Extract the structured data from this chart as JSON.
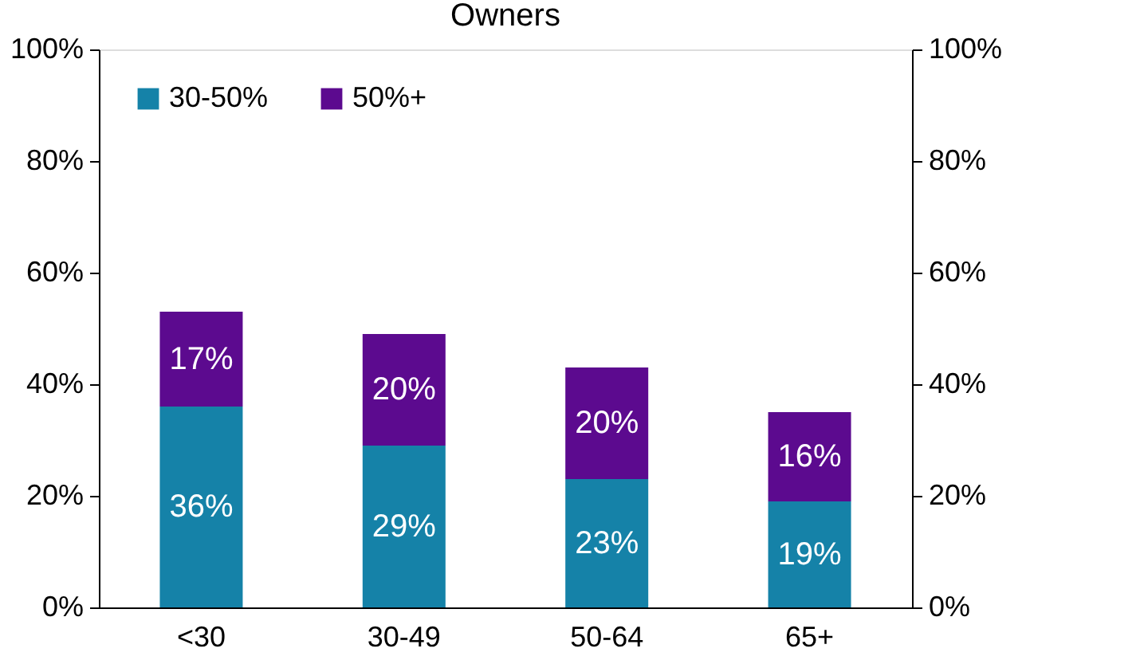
{
  "chart_data": {
    "type": "bar",
    "title": "Owners",
    "stacked": true,
    "categories": [
      "<30",
      "30-49",
      "50-64",
      "65+"
    ],
    "series": [
      {
        "name": "30-50%",
        "color": "#1582a8",
        "values": [
          36,
          29,
          23,
          19
        ],
        "value_labels": [
          "36%",
          "29%",
          "23%",
          "19%"
        ]
      },
      {
        "name": "50%+",
        "color": "#5c0a8f",
        "values": [
          17,
          20,
          20,
          16
        ],
        "value_labels": [
          "17%",
          "20%",
          "20%",
          "16%"
        ]
      }
    ],
    "ylim": [
      0,
      100
    ],
    "yticks": [
      {
        "value": 0,
        "label": "0%"
      },
      {
        "value": 20,
        "label": "20%"
      },
      {
        "value": 40,
        "label": "40%"
      },
      {
        "value": 60,
        "label": "60%"
      },
      {
        "value": 80,
        "label": "80%"
      },
      {
        "value": 100,
        "label": "100%"
      }
    ],
    "y2lim": [
      0,
      100
    ],
    "y2ticks": [
      {
        "value": 0,
        "label": "0%"
      },
      {
        "value": 20,
        "label": "20%"
      },
      {
        "value": 40,
        "label": "40%"
      },
      {
        "value": 60,
        "label": "60%"
      },
      {
        "value": 80,
        "label": "80%"
      },
      {
        "value": 100,
        "label": "100%"
      }
    ],
    "legend": "top left",
    "grid": false
  }
}
